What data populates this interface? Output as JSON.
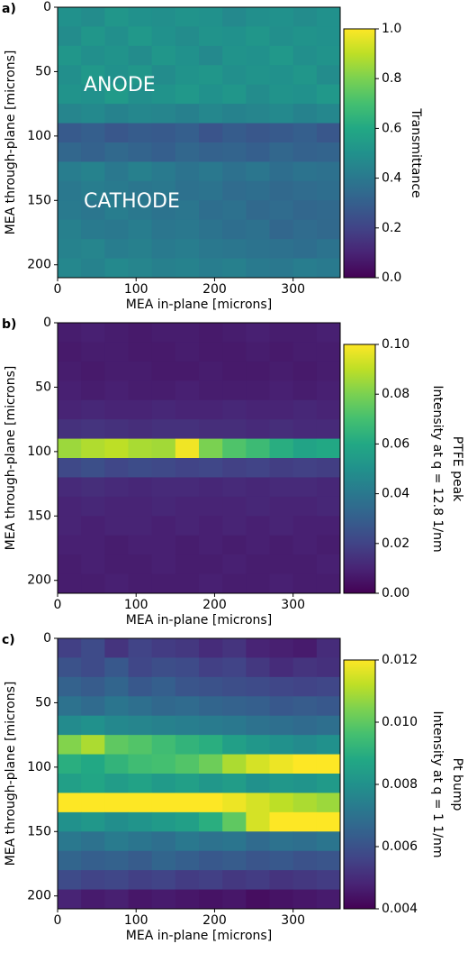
{
  "chart_data": [
    {
      "type": "heatmap",
      "panel_label": "a)",
      "xlabel": "MEA in-plane [microns]",
      "ylabel": "MEA through-plane [microns]",
      "colorbar_label": [
        "Transmittance"
      ],
      "annotations": [
        "ANODE",
        "CATHODE"
      ],
      "colormap": "viridis",
      "xlim": [
        0,
        360
      ],
      "ylim": [
        210,
        0
      ],
      "xticks": [
        0,
        100,
        200,
        300
      ],
      "yticks": [
        0,
        50,
        100,
        150,
        200
      ],
      "clim": [
        0,
        1
      ],
      "cticks": [
        {
          "value": 0,
          "label": "0.0"
        },
        0.2,
        0.4,
        0.6,
        0.8,
        {
          "value": 1,
          "label": "1.0"
        }
      ],
      "z": [
        [
          0.5,
          0.48,
          0.52,
          0.5,
          0.49,
          0.51,
          0.5,
          0.47,
          0.49,
          0.5,
          0.48,
          0.5
        ],
        [
          0.48,
          0.52,
          0.49,
          0.53,
          0.5,
          0.48,
          0.51,
          0.5,
          0.52,
          0.49,
          0.51,
          0.5
        ],
        [
          0.52,
          0.49,
          0.51,
          0.48,
          0.52,
          0.5,
          0.47,
          0.51,
          0.5,
          0.53,
          0.49,
          0.51
        ],
        [
          0.49,
          0.53,
          0.5,
          0.52,
          0.48,
          0.51,
          0.52,
          0.49,
          0.51,
          0.5,
          0.52,
          0.48
        ],
        [
          0.51,
          0.5,
          0.54,
          0.49,
          0.51,
          0.53,
          0.5,
          0.52,
          0.48,
          0.51,
          0.5,
          0.53
        ],
        [
          0.45,
          0.47,
          0.44,
          0.46,
          0.45,
          0.43,
          0.46,
          0.44,
          0.45,
          0.47,
          0.44,
          0.46
        ],
        [
          0.28,
          0.3,
          0.27,
          0.29,
          0.28,
          0.3,
          0.26,
          0.29,
          0.27,
          0.28,
          0.3,
          0.27
        ],
        [
          0.33,
          0.31,
          0.34,
          0.32,
          0.3,
          0.33,
          0.31,
          0.32,
          0.3,
          0.33,
          0.31,
          0.32
        ],
        [
          0.42,
          0.44,
          0.4,
          0.43,
          0.41,
          0.38,
          0.4,
          0.37,
          0.39,
          0.36,
          0.38,
          0.37
        ],
        [
          0.4,
          0.42,
          0.41,
          0.39,
          0.4,
          0.37,
          0.38,
          0.35,
          0.36,
          0.34,
          0.35,
          0.36
        ],
        [
          0.41,
          0.39,
          0.42,
          0.4,
          0.38,
          0.39,
          0.36,
          0.37,
          0.34,
          0.35,
          0.33,
          0.34
        ],
        [
          0.43,
          0.41,
          0.4,
          0.42,
          0.39,
          0.4,
          0.38,
          0.36,
          0.37,
          0.33,
          0.35,
          0.34
        ],
        [
          0.44,
          0.45,
          0.42,
          0.43,
          0.41,
          0.42,
          0.4,
          0.39,
          0.38,
          0.37,
          0.36,
          0.38
        ],
        [
          0.46,
          0.44,
          0.47,
          0.45,
          0.43,
          0.44,
          0.42,
          0.43,
          0.41,
          0.4,
          0.42,
          0.41
        ]
      ]
    },
    {
      "type": "heatmap",
      "panel_label": "b)",
      "xlabel": "MEA in-plane [microns]",
      "ylabel": "MEA through-plane [microns]",
      "colorbar_label": [
        "PTFE peak",
        "Intensity at q = 12.8 1/nm"
      ],
      "colormap": "viridis",
      "xlim": [
        0,
        360
      ],
      "ylim": [
        210,
        0
      ],
      "xticks": [
        0,
        100,
        200,
        300
      ],
      "yticks": [
        0,
        50,
        100,
        150,
        200
      ],
      "clim": [
        0,
        0.1
      ],
      "cticks": [
        {
          "value": 0,
          "label": "0.00"
        },
        0.02,
        0.04,
        0.06,
        0.08,
        {
          "value": 0.1,
          "label": "0.10"
        }
      ],
      "z": [
        [
          0.008,
          0.009,
          0.008,
          0.007,
          0.008,
          0.008,
          0.007,
          0.008,
          0.009,
          0.008,
          0.008,
          0.009
        ],
        [
          0.007,
          0.008,
          0.008,
          0.007,
          0.007,
          0.008,
          0.007,
          0.007,
          0.008,
          0.007,
          0.008,
          0.008
        ],
        [
          0.008,
          0.007,
          0.008,
          0.008,
          0.007,
          0.007,
          0.008,
          0.007,
          0.007,
          0.008,
          0.007,
          0.008
        ],
        [
          0.009,
          0.008,
          0.009,
          0.008,
          0.008,
          0.009,
          0.008,
          0.008,
          0.008,
          0.009,
          0.008,
          0.009
        ],
        [
          0.01,
          0.011,
          0.01,
          0.01,
          0.011,
          0.01,
          0.01,
          0.011,
          0.01,
          0.01,
          0.011,
          0.01
        ],
        [
          0.014,
          0.015,
          0.014,
          0.013,
          0.014,
          0.014,
          0.013,
          0.013,
          0.012,
          0.013,
          0.012,
          0.012
        ],
        [
          0.085,
          0.088,
          0.09,
          0.087,
          0.086,
          0.098,
          0.08,
          0.072,
          0.068,
          0.062,
          0.058,
          0.06
        ],
        [
          0.022,
          0.024,
          0.021,
          0.023,
          0.022,
          0.02,
          0.021,
          0.019,
          0.02,
          0.018,
          0.019,
          0.018
        ],
        [
          0.012,
          0.013,
          0.012,
          0.011,
          0.012,
          0.012,
          0.011,
          0.012,
          0.011,
          0.012,
          0.012,
          0.011
        ],
        [
          0.01,
          0.011,
          0.01,
          0.01,
          0.011,
          0.01,
          0.01,
          0.01,
          0.011,
          0.01,
          0.01,
          0.011
        ],
        [
          0.01,
          0.009,
          0.01,
          0.01,
          0.009,
          0.01,
          0.009,
          0.01,
          0.009,
          0.01,
          0.009,
          0.009
        ],
        [
          0.009,
          0.009,
          0.008,
          0.009,
          0.009,
          0.008,
          0.009,
          0.008,
          0.009,
          0.008,
          0.009,
          0.008
        ],
        [
          0.008,
          0.009,
          0.008,
          0.008,
          0.009,
          0.008,
          0.008,
          0.009,
          0.008,
          0.008,
          0.008,
          0.009
        ],
        [
          0.008,
          0.008,
          0.009,
          0.008,
          0.008,
          0.008,
          0.009,
          0.008,
          0.008,
          0.009,
          0.008,
          0.008
        ]
      ]
    },
    {
      "type": "heatmap",
      "panel_label": "c)",
      "xlabel": "MEA in-plane [microns]",
      "ylabel": "MEA through-plane [microns]",
      "colorbar_label": [
        "Pt bump",
        "Intensity at q = 1 1/nm"
      ],
      "colormap": "viridis",
      "xlim": [
        0,
        360
      ],
      "ylim": [
        210,
        0
      ],
      "xticks": [
        0,
        100,
        200,
        300
      ],
      "yticks": [
        0,
        50,
        100,
        150,
        200
      ],
      "clim": [
        0.004,
        0.012
      ],
      "cticks": [
        0.004,
        0.006,
        0.008,
        {
          "value": 0.01,
          "label": "0.010"
        },
        0.012
      ],
      "z": [
        [
          0.0055,
          0.0058,
          0.0052,
          0.0056,
          0.0054,
          0.0053,
          0.005,
          0.0052,
          0.0048,
          0.0047,
          0.0046,
          0.005
        ],
        [
          0.006,
          0.0058,
          0.0062,
          0.0057,
          0.0059,
          0.0058,
          0.0055,
          0.0056,
          0.0053,
          0.005,
          0.0052,
          0.0051
        ],
        [
          0.0065,
          0.0063,
          0.0066,
          0.0062,
          0.0064,
          0.0061,
          0.006,
          0.0059,
          0.0058,
          0.0057,
          0.0056,
          0.0057
        ],
        [
          0.007,
          0.0068,
          0.0071,
          0.0069,
          0.0067,
          0.0068,
          0.0066,
          0.0065,
          0.0064,
          0.0062,
          0.0063,
          0.0062
        ],
        [
          0.0078,
          0.008,
          0.0077,
          0.0076,
          0.0075,
          0.0074,
          0.0073,
          0.0072,
          0.007,
          0.0069,
          0.0068,
          0.0069
        ],
        [
          0.0105,
          0.011,
          0.01,
          0.0098,
          0.0095,
          0.0092,
          0.009,
          0.0085,
          0.0082,
          0.008,
          0.0078,
          0.008
        ],
        [
          0.009,
          0.0088,
          0.0092,
          0.0095,
          0.0096,
          0.0098,
          0.0102,
          0.011,
          0.0115,
          0.0118,
          0.012,
          0.0122
        ],
        [
          0.0085,
          0.0087,
          0.0084,
          0.0086,
          0.0083,
          0.0085,
          0.0082,
          0.0084,
          0.008,
          0.0082,
          0.0081,
          0.0083
        ],
        [
          0.0125,
          0.0128,
          0.0126,
          0.013,
          0.0124,
          0.0127,
          0.0122,
          0.0118,
          0.0115,
          0.0112,
          0.011,
          0.0108
        ],
        [
          0.008,
          0.0082,
          0.0079,
          0.0081,
          0.0083,
          0.0085,
          0.009,
          0.01,
          0.0115,
          0.0125,
          0.0122,
          0.012
        ],
        [
          0.0072,
          0.007,
          0.0073,
          0.0071,
          0.0069,
          0.0072,
          0.007,
          0.0071,
          0.0068,
          0.007,
          0.0069,
          0.0071
        ],
        [
          0.0066,
          0.0064,
          0.0065,
          0.0063,
          0.0066,
          0.0064,
          0.0062,
          0.0063,
          0.0061,
          0.0062,
          0.006,
          0.0061
        ],
        [
          0.0058,
          0.0056,
          0.0057,
          0.0055,
          0.0056,
          0.0054,
          0.0055,
          0.0053,
          0.0054,
          0.0052,
          0.0053,
          0.0054
        ],
        [
          0.0048,
          0.0046,
          0.0047,
          0.0045,
          0.0046,
          0.0045,
          0.0044,
          0.0045,
          0.0043,
          0.0044,
          0.0045,
          0.0046
        ]
      ]
    }
  ]
}
